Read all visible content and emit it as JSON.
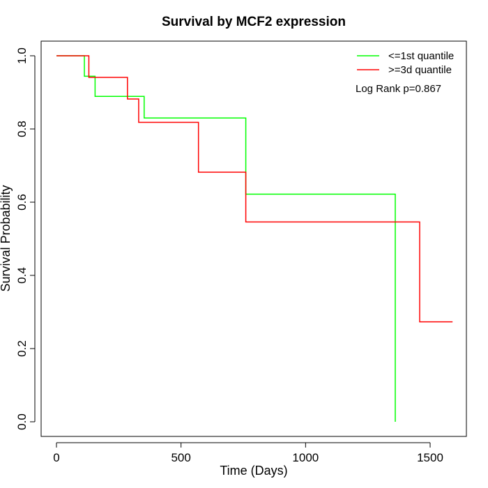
{
  "chart_data": {
    "type": "line",
    "step": true,
    "title": "Survival by MCF2 expression",
    "xlabel": "Time (Days)",
    "ylabel": "Survival Probability",
    "xlim": [
      0,
      1650
    ],
    "ylim": [
      0,
      1.0
    ],
    "x_ticks": [
      0,
      500,
      1000,
      1500
    ],
    "y_ticks": [
      0.0,
      0.2,
      0.4,
      0.6,
      0.8,
      1.0
    ],
    "x_tick_labels": [
      "0",
      "500",
      "1000",
      "1500"
    ],
    "y_tick_labels": [
      "0.0",
      "0.2",
      "0.4",
      "0.6",
      "0.8",
      "1.0"
    ],
    "legend_position": "top-right",
    "annotation": "Log Rank p=0.867",
    "grid": false,
    "series": [
      {
        "name": "<=1st quantile",
        "color": "#00ff00",
        "x": [
          0,
          112,
          155,
          352,
          760,
          1360,
          1360
        ],
        "y": [
          1.0,
          0.944,
          0.889,
          0.83,
          0.622,
          0.622,
          0.0
        ]
      },
      {
        "name": ">=3d quantile",
        "color": "#ff0000",
        "x": [
          0,
          130,
          285,
          330,
          570,
          760,
          1458,
          1590
        ],
        "y": [
          1.0,
          0.941,
          0.882,
          0.818,
          0.682,
          0.546,
          0.273,
          0.273
        ]
      }
    ]
  }
}
